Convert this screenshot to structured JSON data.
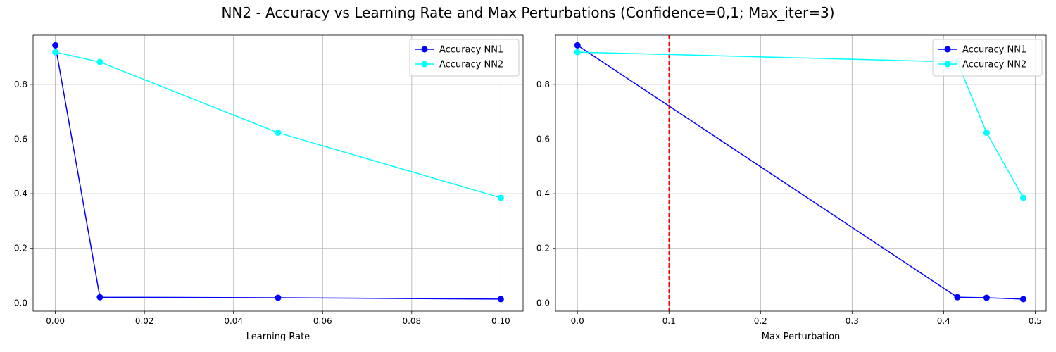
{
  "figure": {
    "title": "NN2 - Accuracy vs Learning Rate and Max Perturbations (Confidence=0,1; Max_iter=3)"
  },
  "colors": {
    "nn1": "#0000ff",
    "nn2": "#00ffff",
    "vline": "#ff0000",
    "grid": "#b0b0b0",
    "legend_border": "#cccccc"
  },
  "chart_data": [
    {
      "type": "line",
      "xlabel": "Learning Rate",
      "ylabel": "",
      "xlim": [
        -0.005,
        0.105
      ],
      "ylim": [
        -0.03,
        0.98
      ],
      "xticks": [
        0.0,
        0.02,
        0.04,
        0.06,
        0.08,
        0.1
      ],
      "xtick_labels": [
        "0.00",
        "0.02",
        "0.04",
        "0.06",
        "0.08",
        "0.10"
      ],
      "yticks": [
        0.0,
        0.2,
        0.4,
        0.6,
        0.8
      ],
      "ytick_labels": [
        "0.0",
        "0.2",
        "0.4",
        "0.6",
        "0.8"
      ],
      "grid": true,
      "legend": "top-right",
      "series": [
        {
          "name": "Accuracy NN1",
          "color": "#0000ff",
          "x": [
            0.0,
            0.01,
            0.05,
            0.1
          ],
          "y": [
            0.943,
            0.021,
            0.019,
            0.014
          ]
        },
        {
          "name": "Accuracy NN2",
          "color": "#00ffff",
          "x": [
            0.0,
            0.01,
            0.05,
            0.1
          ],
          "y": [
            0.918,
            0.882,
            0.623,
            0.385
          ]
        }
      ]
    },
    {
      "type": "line",
      "xlabel": "Max Perturbation",
      "ylabel": "",
      "xlim": [
        -0.024,
        0.512
      ],
      "ylim": [
        -0.03,
        0.98
      ],
      "xticks": [
        0.0,
        0.1,
        0.2,
        0.3,
        0.4,
        0.5
      ],
      "xtick_labels": [
        "0.0",
        "0.1",
        "0.2",
        "0.3",
        "0.4",
        "0.5"
      ],
      "yticks": [
        0.0,
        0.2,
        0.4,
        0.6,
        0.8
      ],
      "ytick_labels": [
        "0.0",
        "0.2",
        "0.4",
        "0.6",
        "0.8"
      ],
      "grid": true,
      "legend": "top-right",
      "vline": {
        "x": 0.1,
        "color": "#ff0000",
        "style": "dashed"
      },
      "series": [
        {
          "name": "Accuracy NN1",
          "color": "#0000ff",
          "x": [
            0.0,
            0.415,
            0.447,
            0.487
          ],
          "y": [
            0.943,
            0.021,
            0.019,
            0.014
          ]
        },
        {
          "name": "Accuracy NN2",
          "color": "#00ffff",
          "x": [
            0.0,
            0.415,
            0.447,
            0.487
          ],
          "y": [
            0.918,
            0.882,
            0.623,
            0.385
          ]
        }
      ]
    }
  ]
}
